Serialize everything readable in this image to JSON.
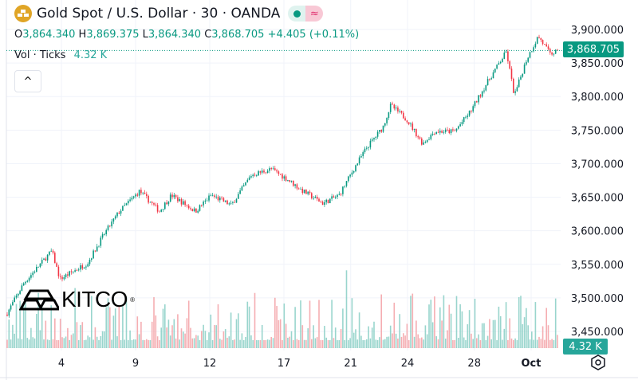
{
  "header": {
    "title": "Gold Spot / U.S. Dollar · 30 · OANDA",
    "status_dot_color": "#089981",
    "status_icon": "≈"
  },
  "ohlc": {
    "o_label": "O",
    "o": "3,864.340",
    "h_label": "H",
    "h": "3,869.375",
    "l_label": "L",
    "l": "3,864.340",
    "c_label": "C",
    "c": "3,868.705",
    "change": "+4.405 (+0.11%)"
  },
  "volume": {
    "label": "Vol · Ticks",
    "value": "4.32 K"
  },
  "collapse_icon": "^",
  "watermark": "KITCO",
  "price_tag": "3,868.705",
  "volume_tag": "4.32 K",
  "colors": {
    "up": "#089981",
    "down": "#f23645",
    "vol_up": "#7fcbc1",
    "vol_down": "#f29a9f"
  },
  "chart_data": {
    "type": "candlestick",
    "title": "Gold Spot / U.S. Dollar · 30 · OANDA",
    "ylim": [
      3430,
      3910
    ],
    "y_ticks": [
      "3,900.000",
      "3,850.000",
      "3,800.000",
      "3,750.000",
      "3,700.000",
      "3,650.000",
      "3,600.000",
      "3,550.000",
      "3,500.000",
      "3,450.000"
    ],
    "y_tick_values": [
      3900,
      3850,
      3800,
      3750,
      3700,
      3650,
      3600,
      3550,
      3500,
      3450
    ],
    "x_ticks": [
      {
        "label": "4",
        "day": 2.0
      },
      {
        "label": "9",
        "day": 5.0
      },
      {
        "label": "12",
        "day": 8.0
      },
      {
        "label": "17",
        "day": 11.0
      },
      {
        "label": "21",
        "day": 13.7
      },
      {
        "label": "24",
        "day": 16.0
      },
      {
        "label": "28",
        "day": 18.7
      },
      {
        "label": "Oct",
        "day": 21.0
      }
    ],
    "xlim": [
      -0.23,
      22.1
    ],
    "price_path": [
      [
        -0.23,
        3475
      ],
      [
        0.48,
        3522
      ],
      [
        1.61,
        3570
      ],
      [
        1.94,
        3528
      ],
      [
        3.06,
        3552
      ],
      [
        3.71,
        3594
      ],
      [
        4.35,
        3629
      ],
      [
        5.16,
        3659
      ],
      [
        5.97,
        3629
      ],
      [
        6.45,
        3653
      ],
      [
        7.42,
        3629
      ],
      [
        8.06,
        3653
      ],
      [
        8.87,
        3638
      ],
      [
        9.68,
        3683
      ],
      [
        10.48,
        3692
      ],
      [
        11.13,
        3677
      ],
      [
        11.77,
        3659
      ],
      [
        12.58,
        3641
      ],
      [
        13.23,
        3653
      ],
      [
        13.87,
        3695
      ],
      [
        14.35,
        3724
      ],
      [
        15.0,
        3754
      ],
      [
        15.32,
        3787
      ],
      [
        15.97,
        3766
      ],
      [
        16.61,
        3730
      ],
      [
        17.1,
        3748
      ],
      [
        17.9,
        3748
      ],
      [
        18.55,
        3778
      ],
      [
        19.19,
        3819
      ],
      [
        20.0,
        3867
      ],
      [
        20.32,
        3801
      ],
      [
        20.81,
        3855
      ],
      [
        21.29,
        3890
      ],
      [
        21.77,
        3863
      ],
      [
        22.1,
        3868.705
      ]
    ],
    "last_price": 3868.705,
    "last_volume_k": 4.32
  }
}
